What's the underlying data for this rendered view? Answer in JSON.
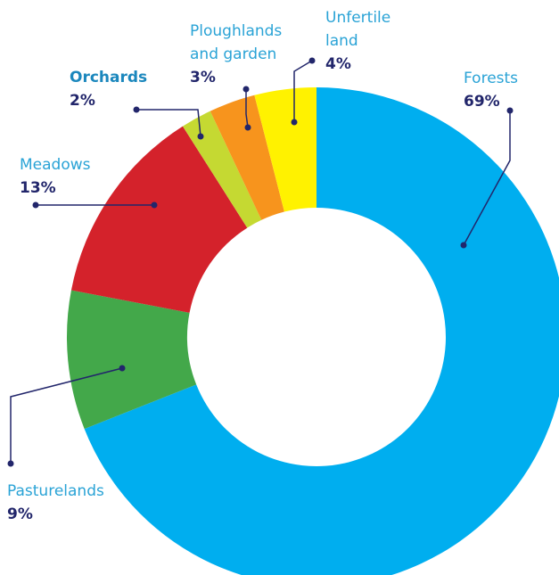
{
  "chart_data": {
    "type": "donut",
    "categories": [
      "Forests",
      "Pasturelands",
      "Meadows",
      "Orchards",
      "Ploughlands and garden",
      "Unfertile land"
    ],
    "values": [
      69,
      9,
      13,
      2,
      3,
      4
    ],
    "value_labels": [
      "69%",
      "9%",
      "13%",
      "2%",
      "3%",
      "4%"
    ],
    "colors": [
      "#00aeef",
      "#43a84a",
      "#d4222b",
      "#c5d932",
      "#f7941d",
      "#fff200"
    ]
  }
}
